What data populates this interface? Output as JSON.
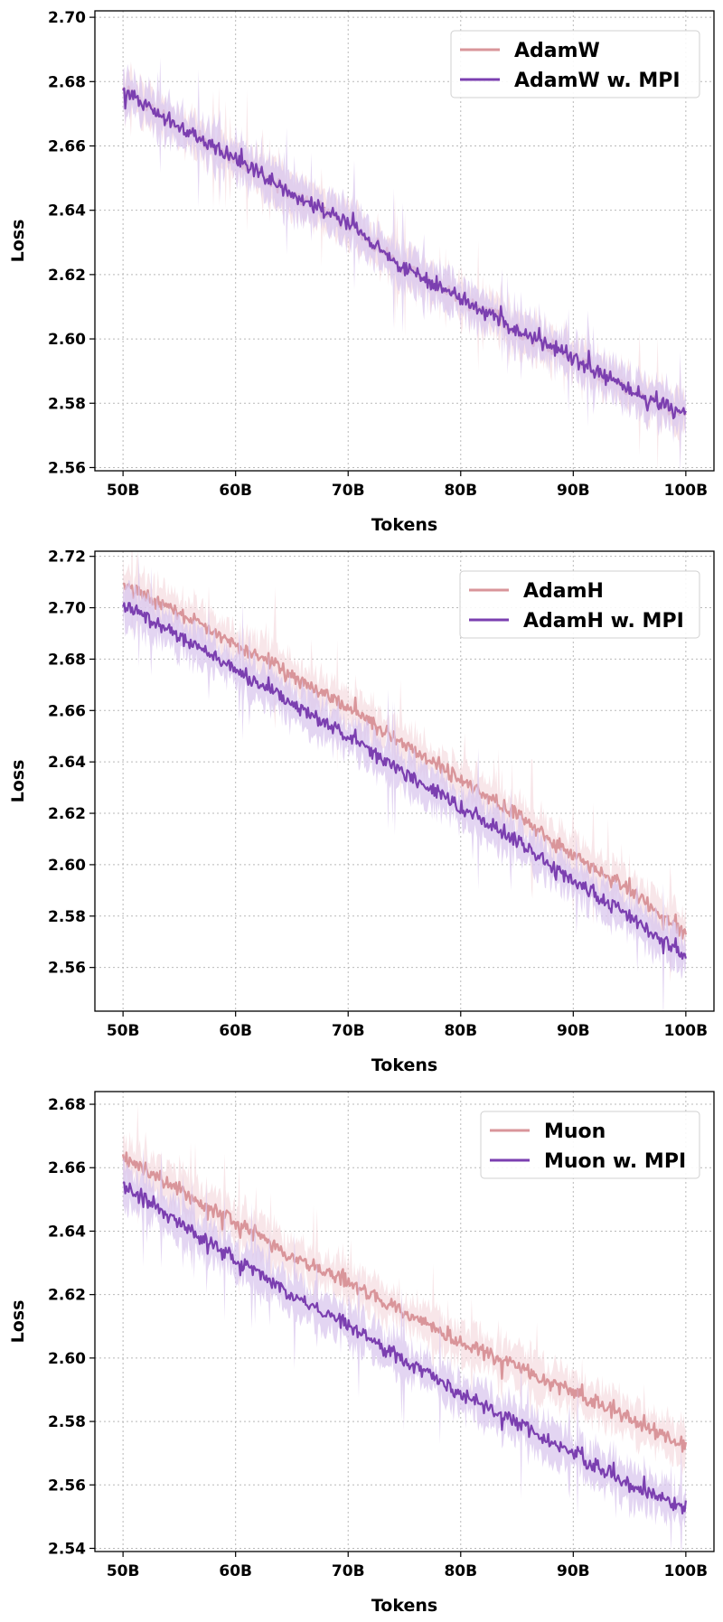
{
  "colors": {
    "baseline": "#d9959a",
    "baseline_band": "#f3d5da",
    "mpi": "#7b3fb0",
    "mpi_band": "#d9c7ee",
    "grid": "#b9b9b9"
  },
  "chart_data": [
    {
      "type": "line",
      "xlabel": "Tokens",
      "ylabel": "Loss",
      "xlim": [
        47.5,
        102.5
      ],
      "ylim": [
        2.559,
        2.702
      ],
      "xticks": [
        50,
        60,
        70,
        80,
        90,
        100
      ],
      "xtick_labels": [
        "50B",
        "60B",
        "70B",
        "80B",
        "90B",
        "100B"
      ],
      "yticks": [
        2.56,
        2.58,
        2.6,
        2.62,
        2.64,
        2.66,
        2.68,
        2.7
      ],
      "ytick_labels": [
        "2.56",
        "2.58",
        "2.60",
        "2.62",
        "2.64",
        "2.66",
        "2.68",
        "2.70"
      ],
      "grid": true,
      "legend_position": "top-right",
      "series": [
        {
          "name": "AdamW",
          "role": "baseline",
          "x": [
            50,
            55,
            60,
            65,
            70,
            75,
            80,
            85,
            90,
            95,
            100
          ],
          "y": [
            2.677,
            2.666,
            2.656,
            2.645,
            2.636,
            2.622,
            2.613,
            2.603,
            2.594,
            2.584,
            2.576
          ]
        },
        {
          "name": "AdamW w. MPI",
          "role": "mpi",
          "x": [
            50,
            55,
            60,
            65,
            70,
            75,
            80,
            85,
            90,
            95,
            100
          ],
          "y": [
            2.677,
            2.666,
            2.656,
            2.645,
            2.636,
            2.622,
            2.613,
            2.603,
            2.594,
            2.584,
            2.576
          ]
        }
      ]
    },
    {
      "type": "line",
      "xlabel": "Tokens",
      "ylabel": "Loss",
      "xlim": [
        47.5,
        102.5
      ],
      "ylim": [
        2.543,
        2.722
      ],
      "xticks": [
        50,
        60,
        70,
        80,
        90,
        100
      ],
      "xtick_labels": [
        "50B",
        "60B",
        "70B",
        "80B",
        "90B",
        "100B"
      ],
      "yticks": [
        2.56,
        2.58,
        2.6,
        2.62,
        2.64,
        2.66,
        2.68,
        2.7,
        2.72
      ],
      "ytick_labels": [
        "2.56",
        "2.58",
        "2.60",
        "2.62",
        "2.64",
        "2.66",
        "2.68",
        "2.70",
        "2.72"
      ],
      "grid": true,
      "legend_position": "top-right",
      "series": [
        {
          "name": "AdamH",
          "role": "baseline",
          "x": [
            50,
            55,
            60,
            65,
            70,
            75,
            80,
            85,
            90,
            95,
            100
          ],
          "y": [
            2.709,
            2.698,
            2.686,
            2.674,
            2.661,
            2.647,
            2.633,
            2.619,
            2.604,
            2.59,
            2.573
          ]
        },
        {
          "name": "AdamH w. MPI",
          "role": "mpi",
          "x": [
            50,
            55,
            60,
            65,
            70,
            75,
            80,
            85,
            90,
            95,
            100
          ],
          "y": [
            2.701,
            2.689,
            2.676,
            2.663,
            2.65,
            2.636,
            2.622,
            2.609,
            2.594,
            2.58,
            2.564
          ]
        }
      ]
    },
    {
      "type": "line",
      "xlabel": "Tokens",
      "ylabel": "Loss",
      "xlim": [
        47.5,
        102.5
      ],
      "ylim": [
        2.539,
        2.684
      ],
      "xticks": [
        50,
        60,
        70,
        80,
        90,
        100
      ],
      "xtick_labels": [
        "50B",
        "60B",
        "70B",
        "80B",
        "90B",
        "100B"
      ],
      "yticks": [
        2.54,
        2.56,
        2.58,
        2.6,
        2.62,
        2.64,
        2.66,
        2.68
      ],
      "ytick_labels": [
        "2.54",
        "2.56",
        "2.58",
        "2.60",
        "2.62",
        "2.64",
        "2.66",
        "2.68"
      ],
      "grid": true,
      "legend_position": "top-right",
      "series": [
        {
          "name": "Muon",
          "role": "baseline",
          "x": [
            50,
            55,
            60,
            65,
            70,
            75,
            80,
            85,
            90,
            95,
            100
          ],
          "y": [
            2.663,
            2.653,
            2.643,
            2.632,
            2.624,
            2.614,
            2.605,
            2.597,
            2.589,
            2.581,
            2.572
          ]
        },
        {
          "name": "Muon w. MPI",
          "role": "mpi",
          "x": [
            50,
            55,
            60,
            65,
            70,
            75,
            80,
            85,
            90,
            95,
            100
          ],
          "y": [
            2.654,
            2.643,
            2.631,
            2.62,
            2.61,
            2.599,
            2.589,
            2.579,
            2.57,
            2.56,
            2.553
          ]
        }
      ]
    }
  ]
}
